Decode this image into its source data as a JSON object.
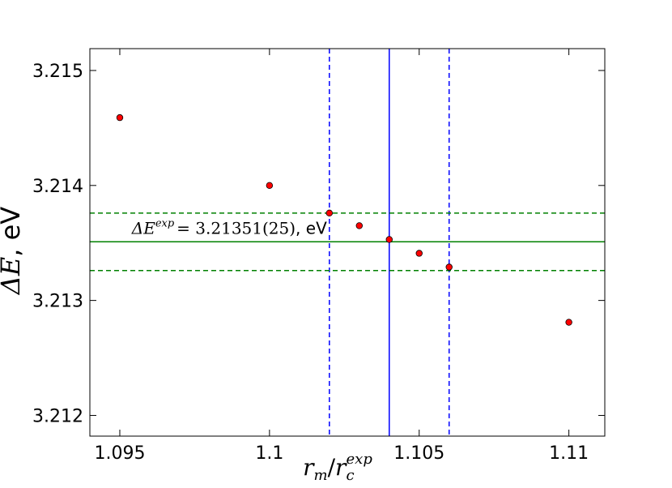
{
  "chart_data": {
    "type": "scatter",
    "title": "",
    "xlabel": "r_m / r_c^exp",
    "xlabel_parts": {
      "base": "r",
      "sub1": "m",
      "slash": "/",
      "base2": "r",
      "sub2": "c",
      "sup2": "exp"
    },
    "ylabel": "ΔE, eV",
    "ylabel_parts": {
      "symbol": "ΔE",
      "rest": ", eV"
    },
    "xlim": [
      1.094,
      1.1112
    ],
    "ylim": [
      3.21182,
      3.21519
    ],
    "xticks": [
      1.095,
      1.1,
      1.105,
      1.11
    ],
    "xtick_labels": [
      "1.095",
      "1.1",
      "1.105",
      "1.11"
    ],
    "yticks": [
      3.212,
      3.213,
      3.214,
      3.215
    ],
    "ytick_labels": [
      "3.212",
      "3.213",
      "3.214",
      "3.215"
    ],
    "grid": false,
    "series": [
      {
        "marker": "circle",
        "color": "#ff0000",
        "edgecolor": "#000000",
        "x": [
          1.095,
          1.1,
          1.102,
          1.103,
          1.104,
          1.105,
          1.106,
          1.11
        ],
        "y": [
          3.21459,
          3.214,
          3.21376,
          3.21365,
          3.21353,
          3.21341,
          3.21329,
          3.21281
        ]
      }
    ],
    "reference_lines": [
      {
        "orientation": "vertical",
        "value": 1.104,
        "style": "solid",
        "color": "#0000ff"
      },
      {
        "orientation": "vertical",
        "value": 1.102,
        "style": "dashed",
        "color": "#0000ff"
      },
      {
        "orientation": "vertical",
        "value": 1.106,
        "style": "dashed",
        "color": "#0000ff"
      },
      {
        "orientation": "horizontal",
        "value": 3.21351,
        "style": "solid",
        "color": "#008000"
      },
      {
        "orientation": "horizontal",
        "value": 3.21376,
        "style": "dashed",
        "color": "#008000"
      },
      {
        "orientation": "horizontal",
        "value": 3.21326,
        "style": "dashed",
        "color": "#008000"
      }
    ],
    "annotations": [
      {
        "text": "ΔE^exp = 3.21351(25), eV",
        "parts": {
          "symbol": "ΔE",
          "sup": "exp",
          "eq": "= 3.21351(25)",
          "unit": ", eV"
        },
        "x": 1.0954,
        "y": 3.21358
      }
    ]
  }
}
